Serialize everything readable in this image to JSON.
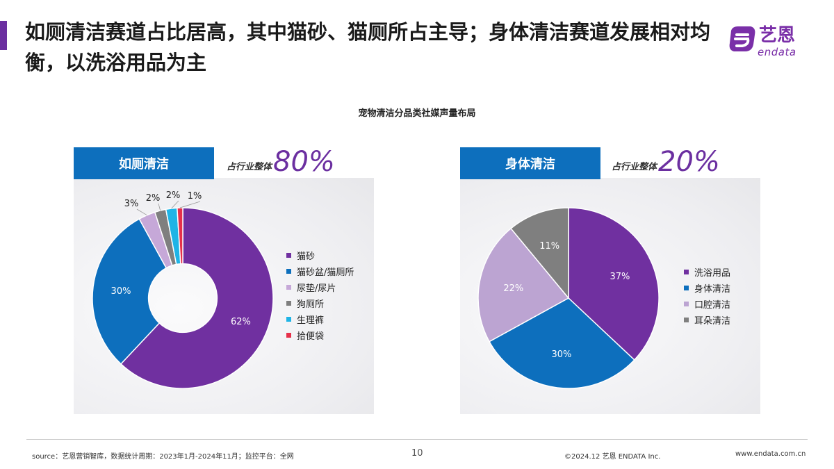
{
  "header": {
    "title": "如厕清洁赛道占比居高，其中猫砂、猫厕所占主导；身体清洁赛道发展相对均衡，以洗浴用品为主",
    "accent_color": "#6b2fa0"
  },
  "logo": {
    "cn": "艺恩",
    "en": "endata",
    "icon": "endata-e-logo"
  },
  "chart_data": [
    {
      "type": "pie",
      "title": "宠物清洁分品类社媒声量布局",
      "tab_label": "如厕清洁",
      "share_label": "占行业整体",
      "share_value": "80%",
      "categories": [
        "猫砂",
        "猫砂盆/猫厕所",
        "尿垫/尿片",
        "狗厕所",
        "生理裤",
        "拾便袋"
      ],
      "values": [
        62,
        30,
        3,
        2,
        2,
        1
      ],
      "data_labels": [
        "62%",
        "30%",
        "3%",
        "2%",
        "2%",
        "1%"
      ],
      "colors": [
        "#7030a0",
        "#0d6fbd",
        "#c6a8d8",
        "#7f7f7f",
        "#1fb4e6",
        "#e6304a"
      ],
      "legend": "right",
      "hole_ratio": 0.38
    },
    {
      "type": "pie",
      "tab_label": "身体清洁",
      "share_label": "占行业整体",
      "share_value": "20%",
      "categories": [
        "洗浴用品",
        "身体清洁",
        "口腔清洁",
        "耳朵清洁"
      ],
      "values": [
        37,
        30,
        22,
        11
      ],
      "data_labels": [
        "37%",
        "30%",
        "22%",
        "11%"
      ],
      "colors": [
        "#7030a0",
        "#0d6fbd",
        "#bca4d2",
        "#7f7f7f"
      ],
      "legend": "right",
      "hole_ratio": 0.0
    }
  ],
  "footer": {
    "source": "source：艺恩营销智库，数据统计周期：2023年1月-2024年11月；监控平台：全网",
    "page": "10",
    "copyright": "©2024.12 艺恩 ENDATA Inc.",
    "site": "www.endata.com.cn"
  }
}
